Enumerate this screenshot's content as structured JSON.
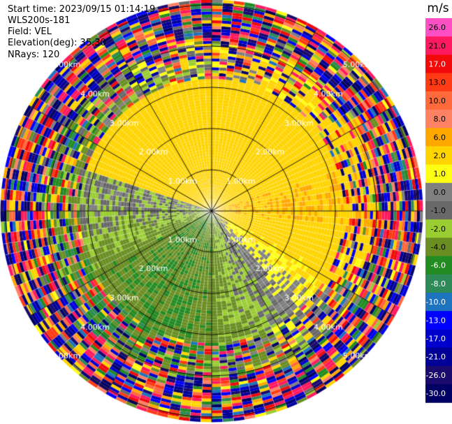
{
  "header": {
    "start_time": "Start time: 2023/09/15 01:14:19",
    "instrument": "WLS200s-181",
    "field": "Field: VEL",
    "elevation": "Elevation(deg): 35.30",
    "nrays": "NRays: 120"
  },
  "colorbar": {
    "unit": "m/s",
    "ticks": [
      "26.0",
      "21.0",
      "17.0",
      "13.0",
      "10.0",
      "8.0",
      "6.0",
      "2.0",
      "1.0",
      "0.0",
      "-1.0",
      "-2.0",
      "-4.0",
      "-6.0",
      "-8.0",
      "-10.0",
      "-13.0",
      "-17.0",
      "-21.0",
      "-26.0",
      "-30.0"
    ],
    "colors": [
      "#ff4fc4",
      "#ff1a60",
      "#f00a0a",
      "#ff3a14",
      "#ff6a3c",
      "#ff8264",
      "#ffa800",
      "#ffd400",
      "#ffff14",
      "#808080",
      "#696969",
      "#9acd32",
      "#6b8e23",
      "#228b22",
      "#2e8b57",
      "#1e73be",
      "#0000ff",
      "#0000cd",
      "#000099",
      "#1a0a6e",
      "#000064"
    ]
  },
  "range_rings": {
    "labels": [
      "1.00km",
      "2.00km",
      "3.00km",
      "4.00km",
      "5.00km"
    ]
  }
}
